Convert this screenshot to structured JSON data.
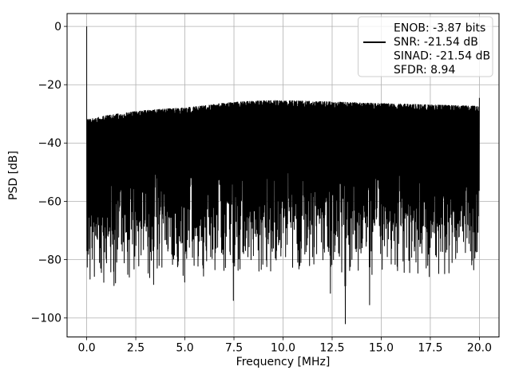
{
  "chart_data": {
    "type": "line",
    "title": "",
    "xlabel": "Frequency [MHz]",
    "ylabel": "PSD [dB]",
    "xlim": [
      -1,
      21
    ],
    "ylim": [
      -106.5,
      4.4
    ],
    "xticks": [
      0,
      2.5,
      5,
      7.5,
      10,
      12.5,
      15,
      17.5,
      20
    ],
    "xtick_labels": [
      "0.0",
      "2.5",
      "5.0",
      "7.5",
      "10.0",
      "12.5",
      "15.0",
      "17.5",
      "20.0"
    ],
    "yticks": [
      0,
      -20,
      -40,
      -60,
      -80,
      -100
    ],
    "ytick_labels": [
      "0",
      "−20",
      "−40",
      "−60",
      "−80",
      "−100"
    ],
    "grid": true,
    "grid_color": "#b0b0b0",
    "spine_color": "#000000",
    "line_color": "#000000",
    "background_color": "#ffffff",
    "legend": {
      "position": "upper right",
      "border_color": "#cccccc",
      "background": "rgba(255,255,255,0.8)",
      "handle_color": "#000000",
      "lines": [
        "ENOB: -3.87 bits",
        "SNR: -21.54 dB",
        "SINAD: -21.54 dB",
        "SFDR: 8.94"
      ]
    },
    "signal": {
      "description": "black PSD noise trace of a full-scale digitized signal, solid noise band with ragged bottom spikes",
      "x_range": [
        0,
        20
      ],
      "dc_spike": {
        "x": 0,
        "y_db": 0
      },
      "nyquist_spike": {
        "x": 20,
        "y_db": -24.5
      },
      "top_envelope": {
        "x": [
          0,
          1,
          2,
          3,
          4,
          5,
          6,
          7,
          8,
          9,
          10,
          11,
          12,
          13,
          14,
          15,
          16,
          17,
          18,
          19,
          20
        ],
        "y_db": [
          -32,
          -30.6,
          -29.6,
          -28.8,
          -28.3,
          -27.9,
          -27.2,
          -26.3,
          -25.8,
          -25.5,
          -25.4,
          -25.6,
          -25.8,
          -26.0,
          -26.2,
          -26.4,
          -26.6,
          -26.8,
          -27.0,
          -27.2,
          -27.4
        ]
      },
      "top_jitter_db": 2.2,
      "bottom_distribution": [
        {
          "cum_p": 0.5,
          "depth_range": [
            22,
            42
          ]
        },
        {
          "cum_p": 0.8,
          "depth_range": [
            34,
            52
          ]
        },
        {
          "cum_p": 0.96,
          "depth_range": [
            42,
            58
          ]
        },
        {
          "cum_p": 1.0,
          "depth_range": [
            50,
            60
          ]
        }
      ],
      "deep_nulls": [
        [
          1.35,
          -84
        ],
        [
          2.15,
          -86
        ],
        [
          3.4,
          -88.5
        ],
        [
          4.65,
          -80.5
        ],
        [
          5.45,
          -82
        ],
        [
          6.3,
          -79
        ],
        [
          7.45,
          -94
        ],
        [
          8.35,
          -80
        ],
        [
          9.6,
          -79.5
        ],
        [
          10.9,
          -81
        ],
        [
          11.7,
          -78
        ],
        [
          12.4,
          -91.5
        ],
        [
          13.15,
          -102
        ],
        [
          14.4,
          -95.5
        ],
        [
          15.3,
          -79
        ],
        [
          16.1,
          -80.5
        ],
        [
          17.35,
          -82
        ],
        [
          18.6,
          -81
        ],
        [
          19.7,
          -83.5
        ]
      ],
      "n_steps": 1000,
      "seed": 11,
      "min_db": -103
    }
  }
}
